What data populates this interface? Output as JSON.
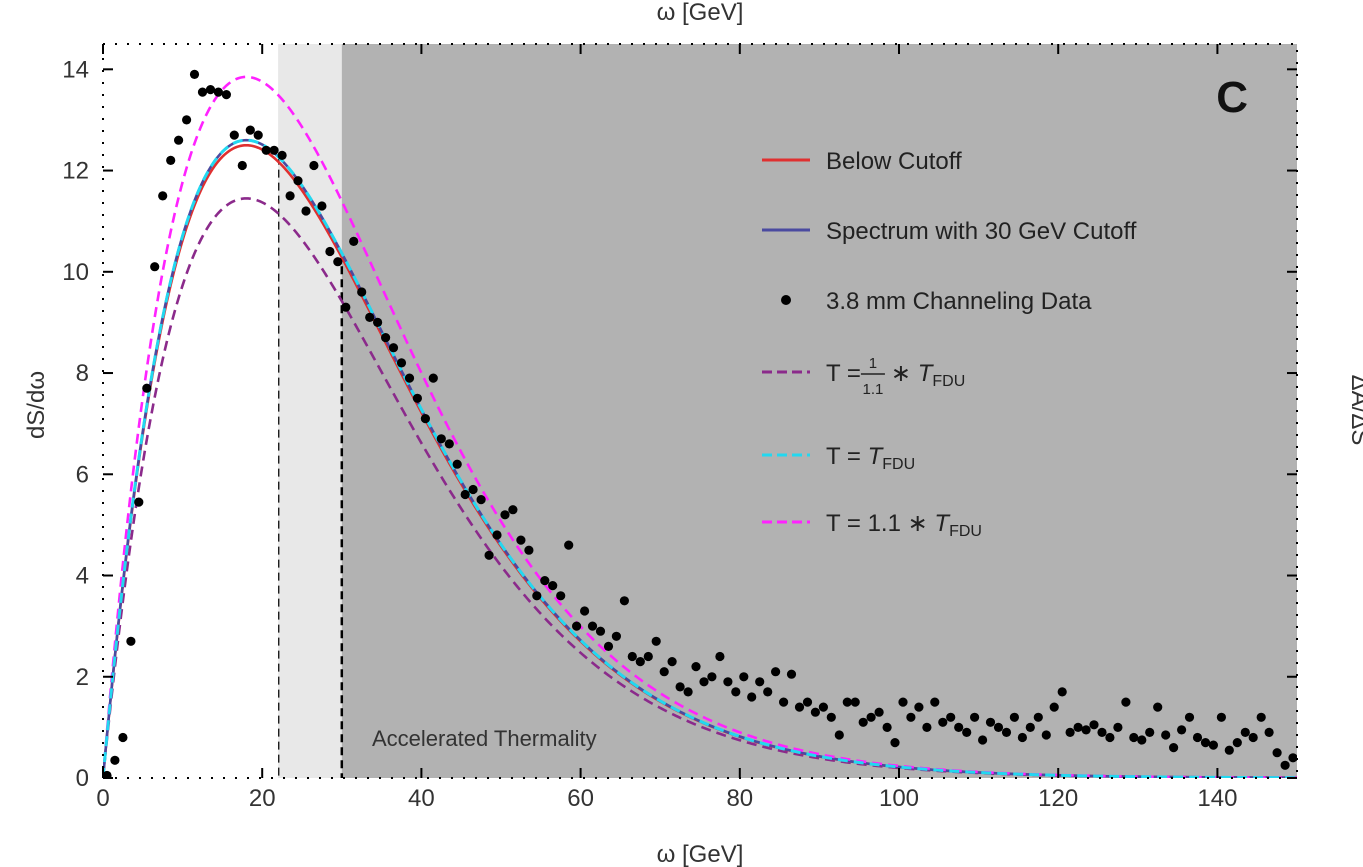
{
  "chart_data": {
    "type": "line",
    "top_xlabel": "ω [GeV]",
    "xlabel": "ω [GeV]",
    "ylabel": "dS/dω",
    "right_ylabel": "ΔA/ΔS",
    "panel_label": "C",
    "xlim": [
      0,
      150
    ],
    "ylim": [
      0,
      14.5
    ],
    "x_ticks": [
      0,
      20,
      40,
      60,
      80,
      100,
      120,
      140
    ],
    "y_ticks": [
      0,
      2,
      4,
      6,
      8,
      10,
      12,
      14
    ],
    "grid": false,
    "legend_position": "top-right",
    "legend": [
      {
        "key": "below",
        "label": "Below Cutoff",
        "style": "solid",
        "color": "#e03030"
      },
      {
        "key": "spectrum",
        "label": "Spectrum with 30 GeV Cutoff",
        "style": "solid",
        "color": "#4a4aa0"
      },
      {
        "key": "data",
        "label": "3.8 mm Channeling Data",
        "style": "marker",
        "color": "#000000"
      },
      {
        "key": "t09",
        "label": "T = 1/1.1 * T_FDU",
        "style": "dashed",
        "color": "#8b2a8b",
        "prefix": "T = ",
        "frac_num": "1",
        "frac_den": "1.1",
        "mid": " ∗ ",
        "sym": "T",
        "sub": "FDU"
      },
      {
        "key": "t10",
        "label": "T = T_FDU",
        "style": "dashed",
        "color": "#22d8f0",
        "prefix": "T = ",
        "sym": "T",
        "sub": "FDU"
      },
      {
        "key": "t11",
        "label": "T = 1.1 * T_FDU",
        "style": "dashed",
        "color": "#ff22ff",
        "prefix": "T = 1.1 ∗ ",
        "sym": "T",
        "sub": "FDU"
      }
    ],
    "shaded_regions": [
      {
        "x": [
          22,
          30
        ],
        "color": "#e8e8e8"
      },
      {
        "x": [
          30,
          150
        ],
        "color": "#b2b2b2"
      }
    ],
    "vertical_lines": [
      22,
      30
    ],
    "annotation": {
      "text": "Accelerated Thermality",
      "x": 34,
      "y": 0.7
    },
    "series": [
      {
        "key": "below",
        "name": "Below Cutoff",
        "color": "#e03030",
        "peak_x": 18,
        "peak_y": 12.5
      },
      {
        "key": "spectrum",
        "name": "Spectrum with 30 GeV Cutoff",
        "color": "#4a4aa0",
        "peak_x": 18,
        "peak_y": 12.6
      },
      {
        "key": "t09",
        "name": "T = 1/1.1 * T_FDU",
        "color": "#8b2a8b",
        "peak_x": 18,
        "peak_y": 11.45
      },
      {
        "key": "t10",
        "name": "T = T_FDU",
        "color": "#22d8f0",
        "peak_x": 18,
        "peak_y": 12.6
      },
      {
        "key": "t11",
        "name": "T = 1.1 * T_FDU",
        "color": "#ff22ff",
        "peak_x": 18,
        "peak_y": 13.85
      }
    ],
    "points": [
      [
        0.5,
        0.05
      ],
      [
        1.5,
        0.35
      ],
      [
        2.5,
        0.8
      ],
      [
        3.5,
        2.7
      ],
      [
        4.5,
        5.45
      ],
      [
        5.5,
        7.7
      ],
      [
        6.5,
        10.1
      ],
      [
        7.5,
        11.5
      ],
      [
        8.5,
        12.2
      ],
      [
        9.5,
        12.6
      ],
      [
        10.5,
        13.0
      ],
      [
        11.5,
        13.9
      ],
      [
        12.5,
        13.55
      ],
      [
        13.5,
        13.6
      ],
      [
        14.5,
        13.55
      ],
      [
        15.5,
        13.5
      ],
      [
        16.5,
        12.7
      ],
      [
        17.5,
        12.1
      ],
      [
        18.5,
        12.8
      ],
      [
        19.5,
        12.7
      ],
      [
        20.5,
        12.4
      ],
      [
        21.5,
        12.4
      ],
      [
        22.5,
        12.3
      ],
      [
        23.5,
        11.5
      ],
      [
        24.5,
        11.8
      ],
      [
        25.5,
        11.2
      ],
      [
        26.5,
        12.1
      ],
      [
        27.5,
        11.3
      ],
      [
        28.5,
        10.4
      ],
      [
        29.5,
        10.2
      ],
      [
        30.5,
        9.3
      ],
      [
        31.5,
        10.6
      ],
      [
        32.5,
        9.6
      ],
      [
        33.5,
        9.1
      ],
      [
        34.5,
        9.0
      ],
      [
        35.5,
        8.7
      ],
      [
        36.5,
        8.5
      ],
      [
        37.5,
        8.2
      ],
      [
        38.5,
        7.9
      ],
      [
        39.5,
        7.5
      ],
      [
        40.5,
        7.1
      ],
      [
        41.5,
        7.9
      ],
      [
        42.5,
        6.7
      ],
      [
        43.5,
        6.6
      ],
      [
        44.5,
        6.2
      ],
      [
        45.5,
        5.6
      ],
      [
        46.5,
        5.7
      ],
      [
        47.5,
        5.5
      ],
      [
        48.5,
        4.4
      ],
      [
        49.5,
        4.8
      ],
      [
        50.5,
        5.2
      ],
      [
        51.5,
        5.3
      ],
      [
        52.5,
        4.7
      ],
      [
        53.5,
        4.5
      ],
      [
        54.5,
        3.6
      ],
      [
        55.5,
        3.9
      ],
      [
        56.5,
        3.8
      ],
      [
        57.5,
        3.6
      ],
      [
        58.5,
        4.6
      ],
      [
        59.5,
        3.0
      ],
      [
        60.5,
        3.3
      ],
      [
        61.5,
        3.0
      ],
      [
        62.5,
        2.9
      ],
      [
        63.5,
        2.6
      ],
      [
        64.5,
        2.8
      ],
      [
        65.5,
        3.5
      ],
      [
        66.5,
        2.4
      ],
      [
        67.5,
        2.3
      ],
      [
        68.5,
        2.4
      ],
      [
        69.5,
        2.7
      ],
      [
        70.5,
        2.1
      ],
      [
        71.5,
        2.3
      ],
      [
        72.5,
        1.8
      ],
      [
        73.5,
        1.7
      ],
      [
        74.5,
        2.2
      ],
      [
        75.5,
        1.9
      ],
      [
        76.5,
        2.0
      ],
      [
        77.5,
        2.4
      ],
      [
        78.5,
        1.9
      ],
      [
        79.5,
        1.7
      ],
      [
        80.5,
        2.0
      ],
      [
        81.5,
        1.6
      ],
      [
        82.5,
        1.9
      ],
      [
        83.5,
        1.7
      ],
      [
        84.5,
        2.1
      ],
      [
        85.5,
        1.5
      ],
      [
        86.5,
        2.05
      ],
      [
        87.5,
        1.4
      ],
      [
        88.5,
        1.5
      ],
      [
        89.5,
        1.3
      ],
      [
        90.5,
        1.4
      ],
      [
        91.5,
        1.2
      ],
      [
        92.5,
        0.85
      ],
      [
        93.5,
        1.5
      ],
      [
        94.5,
        1.5
      ],
      [
        95.5,
        1.1
      ],
      [
        96.5,
        1.2
      ],
      [
        97.5,
        1.3
      ],
      [
        98.5,
        1.0
      ],
      [
        99.5,
        0.7
      ],
      [
        100.5,
        1.5
      ],
      [
        101.5,
        1.2
      ],
      [
        102.5,
        1.4
      ],
      [
        103.5,
        1.0
      ],
      [
        104.5,
        1.5
      ],
      [
        105.5,
        1.1
      ],
      [
        106.5,
        1.2
      ],
      [
        107.5,
        1.0
      ],
      [
        108.5,
        0.9
      ],
      [
        109.5,
        1.2
      ],
      [
        110.5,
        0.75
      ],
      [
        111.5,
        1.1
      ],
      [
        112.5,
        1.0
      ],
      [
        113.5,
        0.9
      ],
      [
        114.5,
        1.2
      ],
      [
        115.5,
        0.8
      ],
      [
        116.5,
        1.0
      ],
      [
        117.5,
        1.2
      ],
      [
        118.5,
        0.85
      ],
      [
        119.5,
        1.4
      ],
      [
        120.5,
        1.7
      ],
      [
        121.5,
        0.9
      ],
      [
        122.5,
        1.0
      ],
      [
        123.5,
        0.95
      ],
      [
        124.5,
        1.05
      ],
      [
        125.5,
        0.9
      ],
      [
        126.5,
        0.8
      ],
      [
        127.5,
        1.0
      ],
      [
        128.5,
        1.5
      ],
      [
        129.5,
        0.8
      ],
      [
        130.5,
        0.75
      ],
      [
        131.5,
        0.9
      ],
      [
        132.5,
        1.4
      ],
      [
        133.5,
        0.85
      ],
      [
        134.5,
        0.6
      ],
      [
        135.5,
        0.95
      ],
      [
        136.5,
        1.2
      ],
      [
        137.5,
        0.8
      ],
      [
        138.5,
        0.7
      ],
      [
        139.5,
        0.65
      ],
      [
        140.5,
        1.2
      ],
      [
        141.5,
        0.55
      ],
      [
        142.5,
        0.7
      ],
      [
        143.5,
        0.9
      ],
      [
        144.5,
        0.8
      ],
      [
        145.5,
        1.2
      ],
      [
        146.5,
        0.9
      ],
      [
        147.5,
        0.5
      ],
      [
        148.5,
        0.25
      ],
      [
        149.5,
        0.4
      ]
    ]
  }
}
